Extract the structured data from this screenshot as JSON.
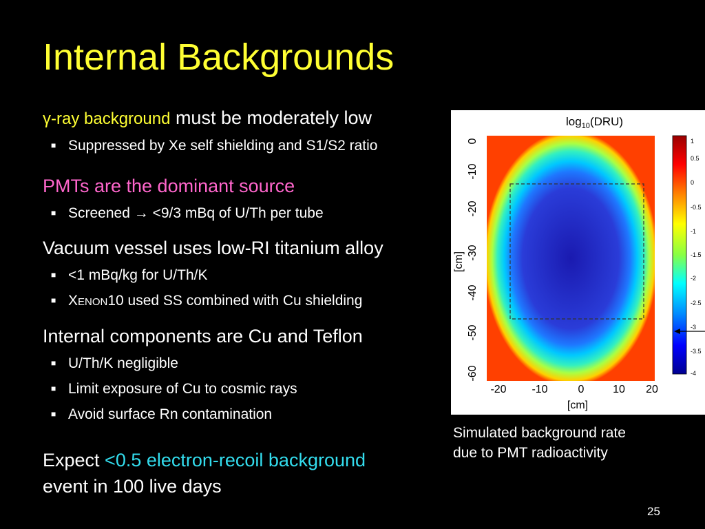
{
  "title": "Internal Backgrounds",
  "sections": [
    {
      "pre": "γ-ray background",
      "post": " must be moderately low",
      "bullets": [
        "Suppressed by Xe self shielding and S1/S2 ratio"
      ]
    },
    {
      "text": "PMTs are the dominant source",
      "bullets": [
        "Screened → <9/3 mBq of U/Th per tube"
      ]
    },
    {
      "text": "Vacuum vessel uses low-RI titanium alloy",
      "bullets": [
        "<1 mBq/kg for U/Th/K",
        {
          "x": "X",
          "enon": "ENON",
          "rest": "10 used SS combined with Cu shielding"
        }
      ]
    },
    {
      "text": "Internal components are Cu and Teflon",
      "bullets": [
        "U/Th/K negligible",
        "Limit exposure of Cu to cosmic rays",
        "Avoid surface Rn contamination"
      ]
    }
  ],
  "expect": {
    "pre": "Expect ",
    "highlight": "<0.5 electron-recoil background",
    "line2": "event in 100 live days"
  },
  "figure": {
    "title_main": "log",
    "title_sub": "10",
    "title_rest": "(DRU)",
    "xlabel": "[cm]",
    "ylabel": "[cm]",
    "xticks": [
      "-20",
      "-10",
      "0",
      "10",
      "20"
    ],
    "yticks": [
      "0",
      "-10",
      "-20",
      "-30",
      "-40",
      "-50",
      "-60"
    ],
    "colorbar_ticks": [
      "1",
      "0.5",
      "0",
      "-0.5",
      "-1",
      "-1.5",
      "-2",
      "-2.5",
      "-3",
      "-3.5",
      "-4"
    ],
    "colorbar_colors": [
      "#990000",
      "#ff0000",
      "#ff8800",
      "#ffff00",
      "#88ff44",
      "#00ffff",
      "#0088ff",
      "#0000ff",
      "#000090"
    ]
  },
  "caption": {
    "line1": "Simulated background rate",
    "line2": "due to PMT radioactivity"
  },
  "page_number": "25"
}
